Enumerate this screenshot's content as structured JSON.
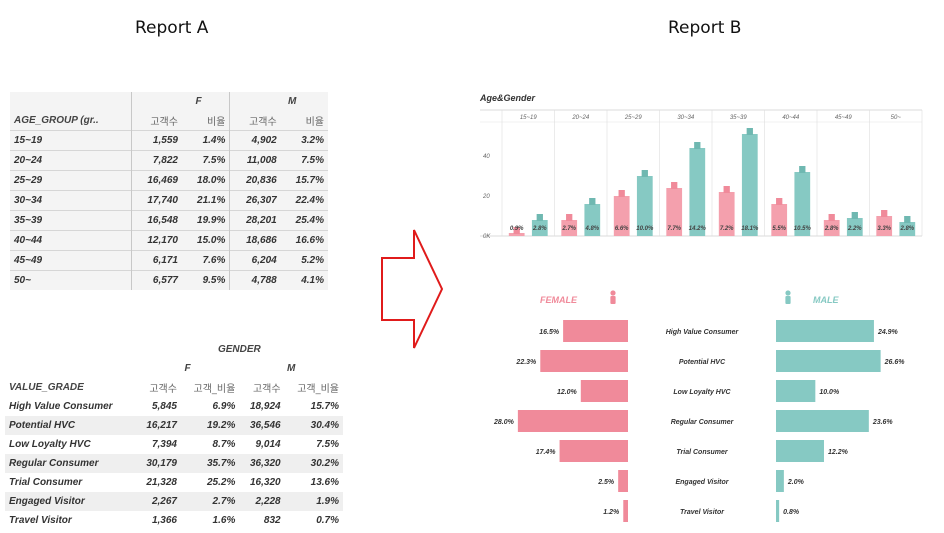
{
  "titles": {
    "report_a": "Report A",
    "report_b": "Report B"
  },
  "tableA": {
    "group_header": "AGE_GROUP (gr..",
    "f_header": "F",
    "m_header": "M",
    "count_label": "고객수",
    "ratio_label": "비율",
    "rows": [
      {
        "age": "15~19",
        "f_cnt": "1,559",
        "f_pct": "1.4%",
        "m_cnt": "4,902",
        "m_pct": "3.2%"
      },
      {
        "age": "20~24",
        "f_cnt": "7,822",
        "f_pct": "7.5%",
        "m_cnt": "11,008",
        "m_pct": "7.5%"
      },
      {
        "age": "25~29",
        "f_cnt": "16,469",
        "f_pct": "18.0%",
        "m_cnt": "20,836",
        "m_pct": "15.7%"
      },
      {
        "age": "30~34",
        "f_cnt": "17,740",
        "f_pct": "21.1%",
        "m_cnt": "26,307",
        "m_pct": "22.4%"
      },
      {
        "age": "35~39",
        "f_cnt": "16,548",
        "f_pct": "19.9%",
        "m_cnt": "28,201",
        "m_pct": "25.4%"
      },
      {
        "age": "40~44",
        "f_cnt": "12,170",
        "f_pct": "15.0%",
        "m_cnt": "18,686",
        "m_pct": "16.6%"
      },
      {
        "age": "45~49",
        "f_cnt": "6,171",
        "f_pct": "7.6%",
        "m_cnt": "6,204",
        "m_pct": "5.2%"
      },
      {
        "age": "50~",
        "f_cnt": "6,577",
        "f_pct": "9.5%",
        "m_cnt": "4,788",
        "m_pct": "4.1%"
      }
    ]
  },
  "tableB": {
    "gender_header": "GENDER",
    "f_header": "F",
    "m_header": "M",
    "grade_header": "VALUE_GRADE",
    "count_label": "고객수",
    "ratio_label": "고객_비율",
    "rows": [
      {
        "grade": "High Value Consumer",
        "f_cnt": "5,845",
        "f_pct": "6.9%",
        "m_cnt": "18,924",
        "m_pct": "15.7%"
      },
      {
        "grade": "Potential HVC",
        "f_cnt": "16,217",
        "f_pct": "19.2%",
        "m_cnt": "36,546",
        "m_pct": "30.4%"
      },
      {
        "grade": "Low Loyalty HVC",
        "f_cnt": "7,394",
        "f_pct": "8.7%",
        "m_cnt": "9,014",
        "m_pct": "7.5%"
      },
      {
        "grade": "Regular Consumer",
        "f_cnt": "30,179",
        "f_pct": "35.7%",
        "m_cnt": "36,320",
        "m_pct": "30.2%"
      },
      {
        "grade": "Trial Consumer",
        "f_cnt": "21,328",
        "f_pct": "25.2%",
        "m_cnt": "16,320",
        "m_pct": "13.6%"
      },
      {
        "grade": "Engaged Visitor",
        "f_cnt": "2,267",
        "f_pct": "2.7%",
        "m_cnt": "2,228",
        "m_pct": "1.9%"
      },
      {
        "grade": "Travel Visitor",
        "f_cnt": "1,366",
        "f_pct": "1.6%",
        "m_cnt": "832",
        "m_pct": "0.7%"
      }
    ]
  },
  "colors": {
    "female": "#f4a0ad",
    "male": "#86c9c3",
    "female_dark": "#f08a9a",
    "male_dark": "#6fb8b1",
    "arrow": "#e01b1b"
  },
  "chart_data": [
    {
      "type": "bar",
      "title": "Age&Gender",
      "categories": [
        "15~19",
        "20~24",
        "25~29",
        "30~34",
        "35~39",
        "40~44",
        "45~49",
        "50~"
      ],
      "yticks": [
        "0K",
        "20",
        "40"
      ],
      "series": [
        {
          "name": "F",
          "values": [
            1.5,
            8,
            20,
            24,
            22,
            16,
            8,
            10
          ],
          "labels": [
            "0.9%",
            "2.7%",
            "6.6%",
            "7.7%",
            "7.2%",
            "5.5%",
            "2.8%",
            "3.3%"
          ]
        },
        {
          "name": "M",
          "values": [
            8,
            16,
            30,
            44,
            51,
            32,
            9,
            7
          ],
          "labels": [
            "2.8%",
            "4.8%",
            "10.0%",
            "14.2%",
            "18.1%",
            "10.5%",
            "2.2%",
            "2.8%"
          ]
        }
      ],
      "ylim": [
        0,
        55
      ]
    },
    {
      "type": "bar",
      "orientation": "horizontal-butterfly",
      "categories": [
        "High Value Consumer",
        "Potential HVC",
        "Low Loyalty HVC",
        "Regular Consumer",
        "Trial Consumer",
        "Engaged Visitor",
        "Travel Visitor"
      ],
      "series": [
        {
          "name": "FEMALE",
          "values": [
            16.5,
            22.3,
            12.0,
            28.0,
            17.4,
            2.5,
            1.2
          ],
          "labels": [
            "16.5%",
            "22.3%",
            "12.0%",
            "28.0%",
            "17.4%",
            "2.5%",
            "1.2%"
          ]
        },
        {
          "name": "MALE",
          "values": [
            24.9,
            26.6,
            10.0,
            23.6,
            12.2,
            2.0,
            0.8
          ],
          "labels": [
            "24.9%",
            "26.6%",
            "10.0%",
            "23.6%",
            "12.2%",
            "2.0%",
            "0.8%"
          ]
        }
      ],
      "xlim": [
        0,
        30
      ]
    }
  ]
}
